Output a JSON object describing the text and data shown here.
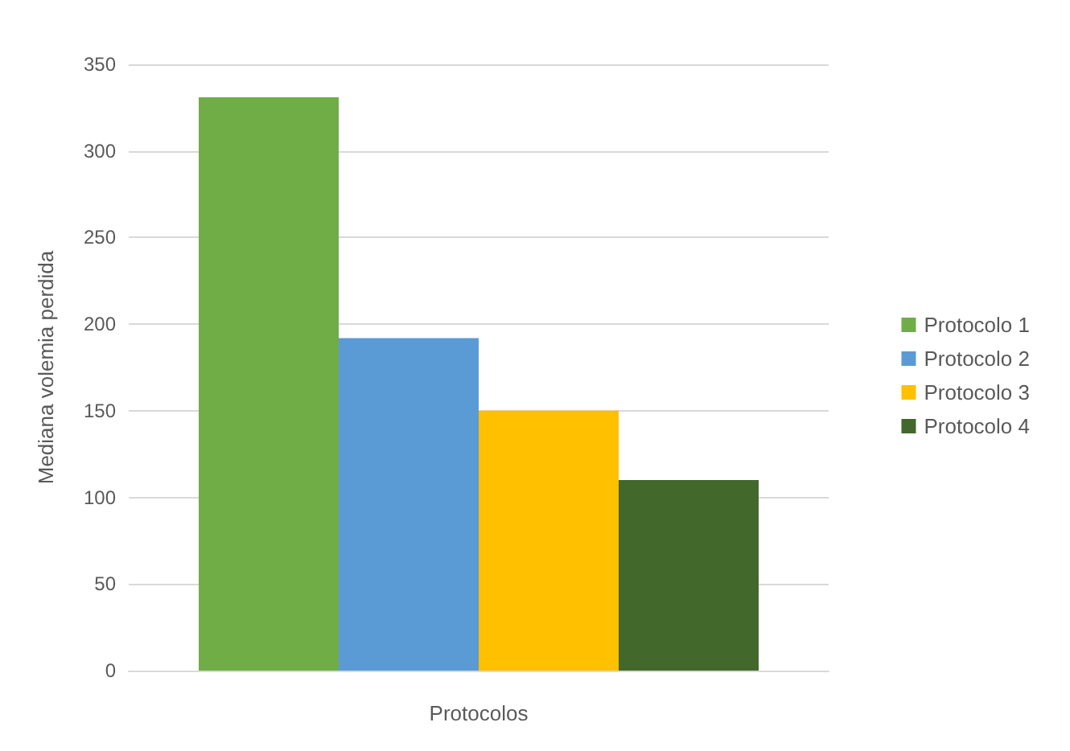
{
  "chart_data": {
    "type": "bar",
    "xlabel": "Protocolos",
    "ylabel": "Mediana volemia perdida",
    "categories": [
      null
    ],
    "series": [
      {
        "name": "Protocolo 1",
        "color": "#70ad47",
        "values": [
          331
        ]
      },
      {
        "name": "Protocolo 2",
        "color": "#5b9bd5",
        "values": [
          192
        ]
      },
      {
        "name": "Protocolo 3",
        "color": "#ffc000",
        "values": [
          150
        ]
      },
      {
        "name": "Protocolo 4",
        "color": "#43682b",
        "values": [
          110
        ]
      }
    ],
    "ylim": [
      0,
      350
    ],
    "yticks": [
      0,
      50,
      100,
      150,
      200,
      250,
      300,
      350
    ],
    "grid": "y",
    "legend": "right"
  }
}
